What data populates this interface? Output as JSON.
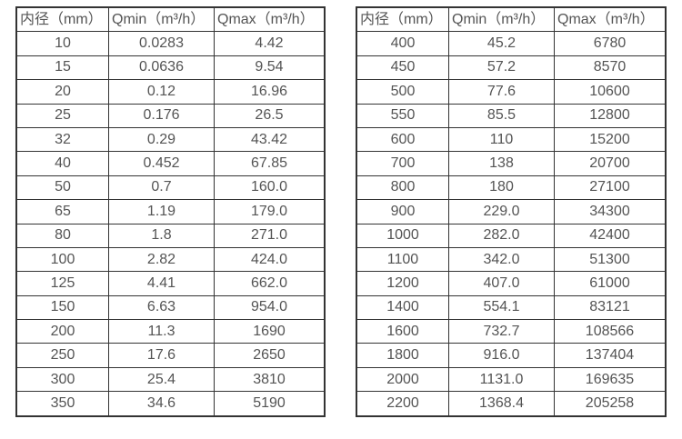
{
  "colors": {
    "background": "#ffffff",
    "border": "#333333",
    "text": "#545454"
  },
  "chart_data": [
    {
      "type": "table",
      "title": "",
      "headers": [
        "内径（mm）",
        "Qmin（m³/h）",
        "Qmax（m³/h）"
      ],
      "rows": [
        [
          "10",
          "0.0283",
          "4.42"
        ],
        [
          "15",
          "0.0636",
          "9.54"
        ],
        [
          "20",
          "0.12",
          "16.96"
        ],
        [
          "25",
          "0.176",
          "26.5"
        ],
        [
          "32",
          "0.29",
          "43.42"
        ],
        [
          "40",
          "0.452",
          "67.85"
        ],
        [
          "50",
          "0.7",
          "160.0"
        ],
        [
          "65",
          "1.19",
          "179.0"
        ],
        [
          "80",
          "1.8",
          "271.0"
        ],
        [
          "100",
          "2.82",
          "424.0"
        ],
        [
          "125",
          "4.41",
          "662.0"
        ],
        [
          "150",
          "6.63",
          "954.0"
        ],
        [
          "200",
          "11.3",
          "1690"
        ],
        [
          "250",
          "17.6",
          "2650"
        ],
        [
          "300",
          "25.4",
          "3810"
        ],
        [
          "350",
          "34.6",
          "5190"
        ]
      ]
    },
    {
      "type": "table",
      "title": "",
      "headers": [
        "内径（mm）",
        "Qmin（m³/h）",
        "Qmax（m³/h）"
      ],
      "rows": [
        [
          "400",
          "45.2",
          "6780"
        ],
        [
          "450",
          "57.2",
          "8570"
        ],
        [
          "500",
          "77.6",
          "10600"
        ],
        [
          "550",
          "85.5",
          "12800"
        ],
        [
          "600",
          "110",
          "15200"
        ],
        [
          "700",
          "138",
          "20700"
        ],
        [
          "800",
          "180",
          "27100"
        ],
        [
          "900",
          "229.0",
          "34300"
        ],
        [
          "1000",
          "282.0",
          "42400"
        ],
        [
          "1100",
          "342.0",
          "51300"
        ],
        [
          "1200",
          "407.0",
          "61000"
        ],
        [
          "1400",
          "554.1",
          "83121"
        ],
        [
          "1600",
          "732.7",
          "108566"
        ],
        [
          "1800",
          "916.0",
          "137404"
        ],
        [
          "2000",
          "1131.0",
          "169635"
        ],
        [
          "2200",
          "1368.4",
          "205258"
        ]
      ]
    }
  ]
}
